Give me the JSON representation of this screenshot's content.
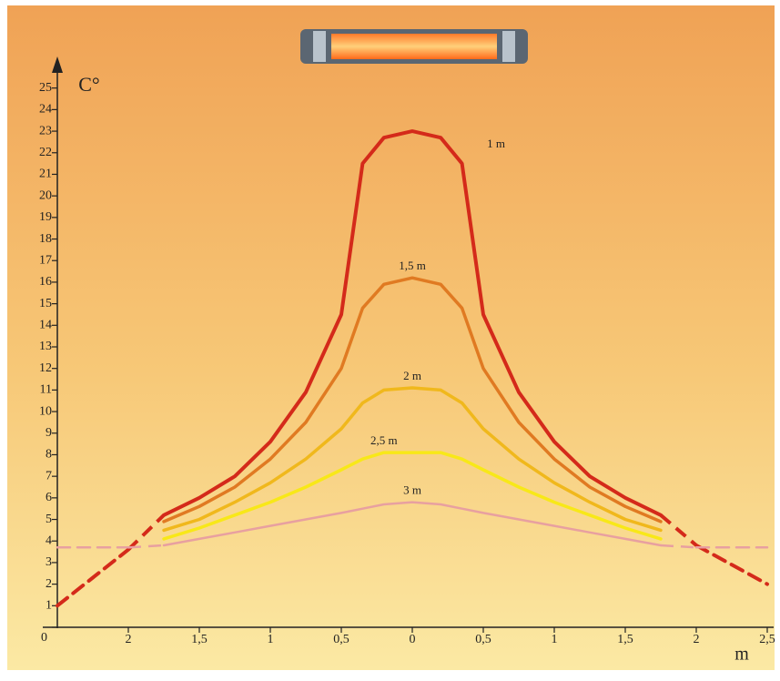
{
  "chart_data": {
    "type": "line",
    "y_label": "C°",
    "x_label": "m",
    "x": [
      -2.5,
      -2.25,
      -2,
      -1.75,
      -1.5,
      -1.25,
      -1,
      -0.75,
      -0.5,
      -0.35,
      -0.2,
      0,
      0.2,
      0.35,
      0.5,
      0.75,
      1,
      1.25,
      1.5,
      1.75,
      2,
      2.25,
      2.5
    ],
    "series": [
      {
        "name": "1 m",
        "color": "#d42a1a",
        "values": [
          1,
          2.3,
          3.6,
          5.2,
          6,
          7,
          8.6,
          10.9,
          14.5,
          21.5,
          22.7,
          23,
          22.7,
          21.5,
          14.5,
          10.9,
          8.6,
          7,
          6,
          5.2,
          3.8,
          2.9,
          2
        ]
      },
      {
        "name": "1,5 m",
        "color": "#e07a22",
        "values": [
          null,
          null,
          null,
          4.9,
          5.6,
          6.5,
          7.8,
          9.5,
          12,
          14.8,
          15.9,
          16.2,
          15.9,
          14.8,
          12,
          9.5,
          7.8,
          6.5,
          5.6,
          4.9,
          null,
          null,
          null
        ]
      },
      {
        "name": "2 m",
        "color": "#f0b81c",
        "values": [
          null,
          null,
          null,
          4.5,
          5,
          5.8,
          6.7,
          7.8,
          9.2,
          10.4,
          11,
          11.1,
          11,
          10.4,
          9.2,
          7.8,
          6.7,
          5.8,
          5,
          4.5,
          null,
          null,
          null
        ]
      },
      {
        "name": "2,5 m",
        "color": "#f8e818",
        "values": [
          null,
          null,
          null,
          4.1,
          4.6,
          5.2,
          5.8,
          6.5,
          7.3,
          7.8,
          8.1,
          8.1,
          8.1,
          7.8,
          7.3,
          6.5,
          5.8,
          5.2,
          4.6,
          4.1,
          null,
          null,
          null
        ]
      },
      {
        "name": "3 m",
        "color": "#e8a0a0",
        "values": [
          3.7,
          3.7,
          3.7,
          3.8,
          4.1,
          4.4,
          4.7,
          5,
          5.3,
          5.5,
          5.7,
          5.8,
          5.7,
          5.5,
          5.3,
          5,
          4.7,
          4.4,
          4.1,
          3.8,
          3.7,
          3.7,
          3.7
        ]
      }
    ],
    "dashed_beyond": 1.75,
    "xlim": [
      -2.5,
      2.5
    ],
    "xticks": [
      {
        "value": -2,
        "label": "2"
      },
      {
        "value": -1.5,
        "label": "1,5"
      },
      {
        "value": -1,
        "label": "1"
      },
      {
        "value": -0.5,
        "label": "0,5"
      },
      0,
      {
        "value": 0.5,
        "label": "0,5"
      },
      1,
      {
        "value": 1.5,
        "label": "1,5"
      },
      2,
      {
        "value": 2.5,
        "label": "2,5"
      }
    ],
    "ylim": [
      0,
      26
    ],
    "yticks": [
      0,
      1,
      2,
      3,
      4,
      5,
      6,
      7,
      8,
      9,
      10,
      11,
      12,
      13,
      14,
      15,
      16,
      17,
      18,
      19,
      20,
      21,
      22,
      23,
      24,
      25
    ]
  }
}
